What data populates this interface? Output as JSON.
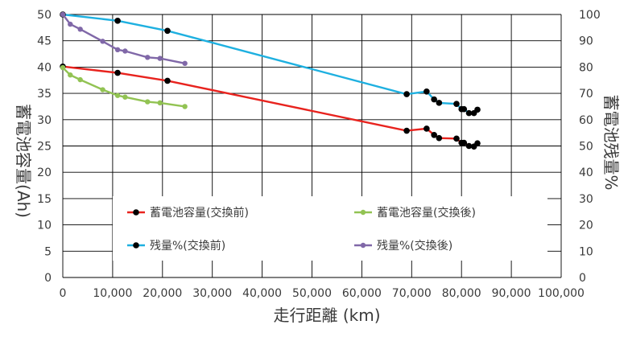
{
  "chart_data": {
    "type": "line",
    "xlabel": "走行距離 (km)",
    "ylabel_left": "蓄電池容量(Ah)",
    "ylabel_right": "蓄電池残量%",
    "xlim": [
      0,
      100000
    ],
    "ylim_left": [
      0,
      50
    ],
    "ylim_right": [
      0,
      100
    ],
    "x_ticks": [
      "0",
      "10,000",
      "20,000",
      "30,000",
      "40,000",
      "50,000",
      "60,000",
      "70,000",
      "80,000",
      "90,000",
      "100,000"
    ],
    "y_ticks_left": [
      "0",
      "5",
      "10",
      "15",
      "20",
      "25",
      "30",
      "35",
      "40",
      "45",
      "50"
    ],
    "y_ticks_right": [
      "0",
      "10",
      "20",
      "30",
      "40",
      "50",
      "60",
      "70",
      "80",
      "90",
      "100"
    ],
    "grid": true,
    "legend_position": "lower-center",
    "series": [
      {
        "name": "蓄電池容量(交換前)",
        "axis": "left",
        "color": "#e8231e",
        "marker_color": "#000000",
        "x": [
          0,
          11000,
          21000,
          69000,
          73000,
          74500,
          75500,
          79000,
          80000,
          80500,
          81500,
          82500,
          83200
        ],
        "y": [
          40.1,
          38.9,
          37.4,
          27.9,
          28.3,
          27.1,
          26.5,
          26.4,
          25.6,
          25.6,
          25.0,
          24.9,
          25.5
        ]
      },
      {
        "name": "蓄電池容量(交換後)",
        "axis": "left",
        "color": "#92c353",
        "marker_color": "#92c353",
        "x": [
          0,
          1500,
          3500,
          8000,
          11000,
          12500,
          17000,
          19500,
          24500
        ],
        "y": [
          39.9,
          38.5,
          37.6,
          35.7,
          34.6,
          34.3,
          33.4,
          33.2,
          32.5
        ]
      },
      {
        "name": "残量%(交換前)",
        "axis": "right",
        "color": "#1eb0e0",
        "marker_color": "#000000",
        "x": [
          0,
          11000,
          21000,
          69000,
          73000,
          74500,
          75500,
          79000,
          80000,
          80500,
          81500,
          82500,
          83200
        ],
        "y": [
          100,
          97.6,
          93.8,
          69.7,
          70.7,
          67.7,
          66.4,
          66.0,
          64.0,
          64.0,
          62.5,
          62.5,
          63.8
        ]
      },
      {
        "name": "残量%(交換後)",
        "axis": "right",
        "color": "#8068a8",
        "marker_color": "#8068a8",
        "x": [
          0,
          1500,
          3500,
          8000,
          11000,
          12500,
          17000,
          19500,
          24500
        ],
        "y": [
          100,
          96.3,
          94.4,
          89.8,
          86.6,
          86.1,
          83.7,
          83.3,
          81.4
        ]
      }
    ]
  }
}
